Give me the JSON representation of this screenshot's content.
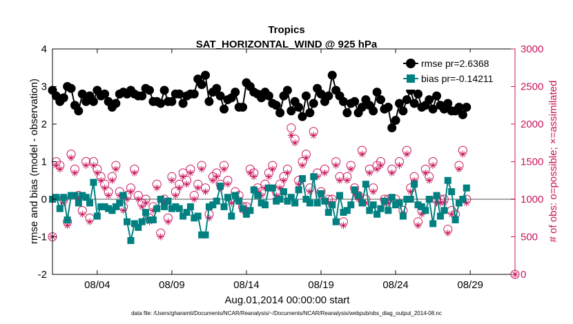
{
  "chart_data": {
    "type": "line",
    "title": "Tropics",
    "subtitle": "SAT_HORIZONTAL_WIND @ 925 hPa",
    "xlabel": "Aug.01,2014 00:00:00 start",
    "ylabel": "rmse and bias (model - observation)",
    "y2label": "# of obs: o=possible; ×=assimilated",
    "footnote": "data file: /Users/gharamti/Documents/NCAR/Reanalysis/~/Documents/NCAR/Reanalysis/webpub/obs_diag_output_2014-08.nc",
    "xlim": [
      1,
      32
    ],
    "ylim": [
      -2,
      4
    ],
    "y2lim": [
      0,
      3000
    ],
    "xtick_positions": [
      4,
      9,
      14,
      19,
      24,
      29
    ],
    "xtick_labels": [
      "08/04",
      "08/09",
      "08/14",
      "08/19",
      "08/24",
      "08/29"
    ],
    "ytick_labels": [
      "-2",
      "-1",
      "0",
      "1",
      "2",
      "3",
      "4"
    ],
    "y2tick_labels": [
      "0",
      "500",
      "1000",
      "1500",
      "2000",
      "2500",
      "3000"
    ],
    "x_start": 1.0,
    "x_step": 0.25,
    "series": [
      {
        "name": "rmse pr=2.6368",
        "axis": "left",
        "color": "#000000",
        "marker": "circle",
        "values": [
          2.9,
          2.75,
          2.6,
          2.7,
          3.0,
          2.95,
          2.5,
          2.35,
          2.8,
          2.6,
          2.75,
          2.6,
          2.9,
          2.75,
          2.8,
          2.6,
          2.45,
          2.55,
          2.8,
          2.85,
          2.8,
          2.9,
          2.8,
          2.75,
          2.75,
          2.95,
          2.9,
          2.6,
          2.6,
          2.55,
          2.9,
          2.6,
          2.6,
          2.8,
          2.8,
          2.55,
          2.75,
          2.8,
          2.8,
          3.2,
          3.05,
          3.3,
          2.6,
          2.85,
          2.95,
          2.75,
          2.4,
          2.65,
          2.7,
          2.85,
          2.45,
          2.45,
          3.1,
          3.0,
          2.85,
          2.8,
          2.7,
          2.85,
          2.75,
          2.55,
          2.5,
          2.3,
          2.75,
          2.9,
          2.35,
          2.6,
          2.45,
          2.2,
          2.75,
          2.3,
          2.55,
          2.95,
          2.8,
          2.6,
          2.75,
          3.3,
          2.9,
          2.75,
          2.6,
          2.3,
          2.55,
          2.6,
          2.3,
          2.45,
          2.65,
          2.5,
          2.35,
          2.85,
          2.65,
          2.4,
          2.45,
          1.9,
          2.1,
          2.55,
          2.35,
          2.65,
          2.9,
          2.55,
          2.8,
          2.45,
          2.5,
          2.65,
          2.4,
          2.75,
          2.5,
          2.4,
          2.55,
          2.35,
          2.35,
          2.45,
          2.25,
          2.45
        ]
      },
      {
        "name": "bias pr=-0.14211",
        "axis": "left",
        "color": "#008080",
        "marker": "square",
        "values": [
          0.0,
          0.05,
          -0.25,
          0.05,
          -0.55,
          0.1,
          0.1,
          -0.1,
          0.1,
          0.05,
          -0.1,
          0.45,
          -0.45,
          -0.2,
          -0.2,
          -0.25,
          -0.3,
          -0.2,
          -0.1,
          0.1,
          -0.6,
          -1.1,
          -0.65,
          -0.75,
          -0.6,
          -0.35,
          -0.55,
          -0.55,
          -0.25,
          0.0,
          -0.2,
          -0.05,
          -0.25,
          -0.2,
          -0.25,
          -0.45,
          -0.35,
          -0.2,
          -0.5,
          -0.45,
          -0.95,
          -0.95,
          -0.2,
          -0.15,
          -0.05,
          0.35,
          -0.2,
          0.05,
          -0.45,
          0.1,
          -0.05,
          -0.25,
          -0.4,
          -0.3,
          0.25,
          0.1,
          -0.1,
          -0.15,
          0.3,
          0.3,
          -0.05,
          0.0,
          0.2,
          -0.05,
          0.05,
          -0.1,
          0.25,
          0.55,
          0.0,
          -0.1,
          0.6,
          -0.1,
          0.15,
          -0.05,
          -0.35,
          -0.15,
          -0.6,
          0.1,
          -0.35,
          -0.3,
          -0.15,
          0.25,
          0.1,
          -0.1,
          0.4,
          -0.3,
          -0.15,
          -0.4,
          -0.25,
          -0.05,
          -0.3,
          0.05,
          -0.15,
          -0.1,
          -0.45,
          0.0,
          0.0,
          0.4,
          -0.15,
          -0.2,
          -0.3,
          0.0,
          -0.65,
          0.1,
          -0.45,
          -0.3,
          0.5,
          0.2,
          -0.55,
          -0.1,
          0.0,
          0.3
        ]
      },
      {
        "name": "# obs possible",
        "axis": "right",
        "color": "#c8145a",
        "marker": "open-circle",
        "values": [
          500,
          1500,
          1450,
          1000,
          700,
          1600,
          1400,
          1050,
          850,
          1500,
          750,
          1500,
          1400,
          1300,
          1200,
          1100,
          1300,
          1450,
          1100,
          900,
          1050,
          1150,
          1400,
          1050,
          950,
          1000,
          750,
          900,
          1200,
          550,
          1000,
          750,
          1300,
          1100,
          1200,
          1350,
          1250,
          1400,
          1050,
          1200,
          1450,
          1150,
          800,
          1300,
          1350,
          1200,
          1450,
          1250,
          1000,
          1100,
          1050,
          900,
          900,
          1400,
          1350,
          1150,
          1100,
          1200,
          1350,
          1450,
          1100,
          1200,
          1300,
          1400,
          1950,
          1800,
          1250,
          1500,
          1600,
          1150,
          1900,
          1350,
          1100,
          1400,
          1000,
          1000,
          1500,
          1300,
          700,
          1300,
          1450,
          1150,
          1050,
          1650,
          1000,
          1400,
          1150,
          1450,
          1500,
          1000,
          1000,
          1400,
          1000,
          1500,
          850,
          1650,
          1150,
          1300,
          700,
          850,
          1400,
          1300,
          1500,
          1000,
          1000,
          1000,
          600,
          850,
          800,
          1450,
          1650,
          1000
        ]
      },
      {
        "name": "# obs assimilated",
        "axis": "right",
        "color": "#c8145a",
        "marker": "star",
        "values": [
          500,
          1450,
          1400,
          950,
          650,
          1550,
          1350,
          1000,
          800,
          1450,
          700,
          1450,
          1350,
          1250,
          1150,
          1050,
          1250,
          1400,
          1050,
          850,
          1000,
          1100,
          1350,
          1000,
          900,
          950,
          700,
          850,
          1150,
          500,
          950,
          700,
          1250,
          1050,
          1150,
          1300,
          1200,
          1350,
          1000,
          1150,
          1400,
          1100,
          750,
          1250,
          1300,
          1150,
          1400,
          1200,
          950,
          1050,
          1000,
          850,
          850,
          1350,
          1300,
          1100,
          1050,
          1150,
          1300,
          1400,
          1050,
          1150,
          1250,
          1350,
          1850,
          1750,
          1200,
          1450,
          1550,
          1100,
          1850,
          1300,
          1050,
          1350,
          950,
          950,
          1450,
          1250,
          650,
          1250,
          1400,
          1100,
          1000,
          1600,
          950,
          1350,
          1100,
          1400,
          1450,
          950,
          950,
          1350,
          950,
          1450,
          800,
          1600,
          1100,
          1250,
          650,
          800,
          1350,
          1250,
          1450,
          950,
          950,
          950,
          550,
          800,
          750,
          1400,
          1600,
          950
        ]
      }
    ],
    "end_marker": {
      "x": 32,
      "obs": 0
    },
    "zero_line_color": "#a8a8a8",
    "legend_position": "top-right"
  }
}
